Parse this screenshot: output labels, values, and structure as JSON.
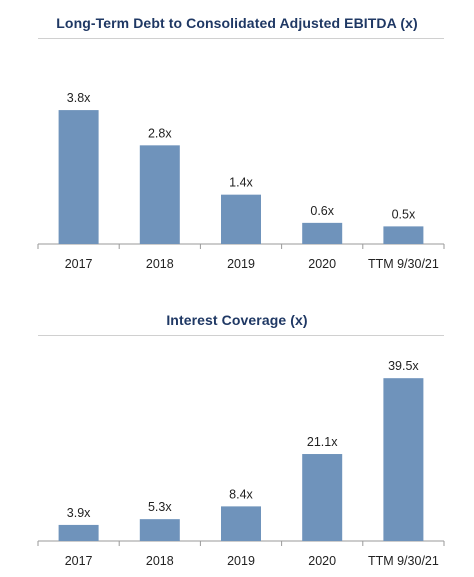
{
  "chart_data": [
    {
      "type": "bar",
      "title": "Long-Term Debt to Consolidated Adjusted EBITDA (x)",
      "categories": [
        "2017",
        "2018",
        "2019",
        "2020",
        "TTM 9/30/21"
      ],
      "values": [
        3.8,
        2.8,
        1.4,
        0.6,
        0.5
      ],
      "value_labels": [
        "3.8x",
        "2.8x",
        "1.4x",
        "0.6x",
        "0.5x"
      ],
      "xlabel": "",
      "ylabel": "",
      "ylim": [
        0,
        4.2
      ],
      "grid": false,
      "bar_color": "#6f93bb"
    },
    {
      "type": "bar",
      "title": "Interest Coverage (x)",
      "categories": [
        "2017",
        "2018",
        "2019",
        "2020",
        "TTM 9/30/21"
      ],
      "values": [
        3.9,
        5.3,
        8.4,
        21.1,
        39.5
      ],
      "value_labels": [
        "3.9x",
        "5.3x",
        "8.4x",
        "21.1x",
        "39.5x"
      ],
      "xlabel": "",
      "ylabel": "",
      "ylim": [
        0,
        41
      ],
      "grid": false,
      "bar_color": "#6f93bb"
    }
  ]
}
